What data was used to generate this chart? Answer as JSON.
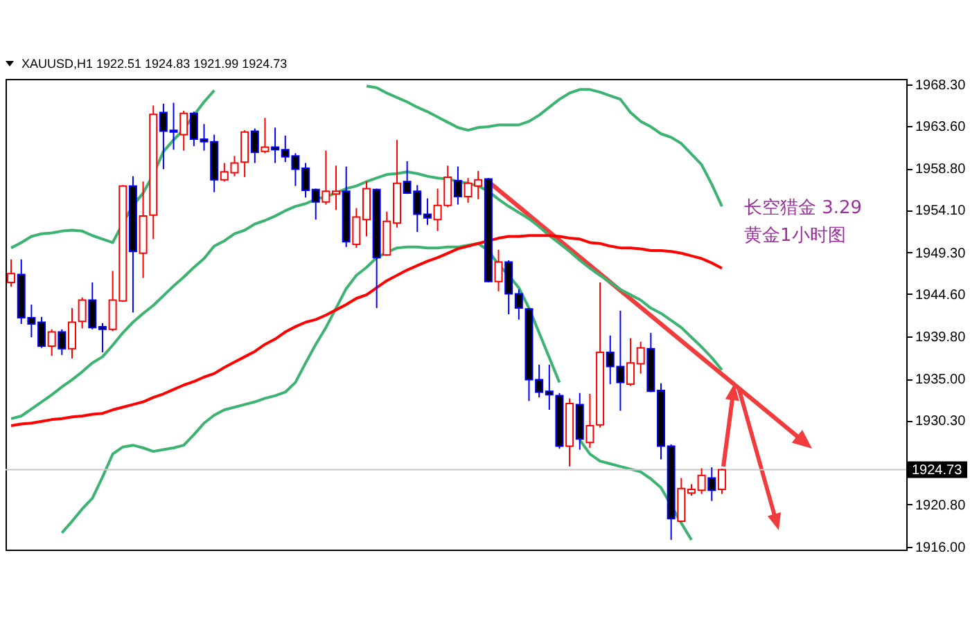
{
  "chart_data": {
    "type": "candlestick",
    "title": "XAUUSD,H1  1922.51 1924.83 1921.99 1924.73",
    "annotations": [
      "长空猎金  3.29",
      "黄金1小时图"
    ],
    "categories": [
      null,
      null,
      null,
      null,
      null,
      null,
      null,
      null,
      null,
      null,
      null,
      null,
      null,
      null,
      null,
      null,
      null,
      null,
      null,
      null,
      null,
      null,
      null,
      null,
      null,
      null,
      null,
      null,
      null,
      null,
      null,
      null,
      null,
      null,
      null,
      null,
      null,
      null,
      null,
      null,
      null,
      null,
      null,
      null,
      null,
      null,
      null,
      null,
      null,
      null,
      null,
      null,
      null,
      null,
      null,
      null,
      null,
      null,
      null,
      null,
      null,
      null,
      null,
      null,
      null,
      null,
      null,
      null,
      null,
      null,
      null
    ],
    "ohlc": [
      [
        1945.9,
        1948.5,
        1945.4,
        1946.9
      ],
      [
        1946.8,
        1948.5,
        1941.2,
        1941.9
      ],
      [
        1941.9,
        1943.4,
        1939.7,
        1941.2
      ],
      [
        1941.4,
        1942.0,
        1938.5,
        1938.7
      ],
      [
        1938.7,
        1940.6,
        1937.6,
        1940.3
      ],
      [
        1940.3,
        1940.6,
        1937.7,
        1938.4
      ],
      [
        1938.4,
        1943.0,
        1937.3,
        1941.4
      ],
      [
        1941.5,
        1944.2,
        1940.7,
        1943.9
      ],
      [
        1943.9,
        1945.9,
        1940.6,
        1940.8
      ],
      [
        1940.9,
        1941.3,
        1938.0,
        1940.6
      ],
      [
        1940.6,
        1947.2,
        1940.4,
        1943.9
      ],
      [
        1943.8,
        1956.9,
        1943.7,
        1956.8
      ],
      [
        1956.8,
        1957.9,
        1942.5,
        1949.4
      ],
      [
        1949.2,
        1957.3,
        1946.4,
        1953.4
      ],
      [
        1953.5,
        1965.9,
        1950.8,
        1964.9
      ],
      [
        1965.1,
        1966.1,
        1958.7,
        1963.0
      ],
      [
        1963.1,
        1966.2,
        1960.9,
        1962.9
      ],
      [
        1962.6,
        1965.3,
        1960.8,
        1965.0
      ],
      [
        1965.0,
        1965.2,
        1961.3,
        1962.1
      ],
      [
        1962.1,
        1963.8,
        1960.8,
        1961.8
      ],
      [
        1961.8,
        1962.6,
        1956.1,
        1957.5
      ],
      [
        1957.5,
        1959.4,
        1957.3,
        1958.4
      ],
      [
        1958.3,
        1960.2,
        1957.9,
        1959.4
      ],
      [
        1959.5,
        1963.1,
        1957.8,
        1962.9
      ],
      [
        1963.0,
        1963.3,
        1959.4,
        1960.6
      ],
      [
        1960.7,
        1964.5,
        1960.5,
        1961.2
      ],
      [
        1961.2,
        1963.4,
        1959.4,
        1960.9
      ],
      [
        1960.9,
        1962.5,
        1959.5,
        1960.1
      ],
      [
        1960.2,
        1960.5,
        1956.8,
        1958.7
      ],
      [
        1958.8,
        1959.4,
        1955.5,
        1956.3
      ],
      [
        1956.4,
        1956.5,
        1953.0,
        1955.0
      ],
      [
        1955.0,
        1960.8,
        1954.7,
        1956.2
      ],
      [
        1955.9,
        1959.1,
        1954.1,
        1956.2
      ],
      [
        1956.2,
        1959.0,
        1949.9,
        1950.5
      ],
      [
        1950.2,
        1954.3,
        1949.8,
        1953.3
      ],
      [
        1953.0,
        1957.3,
        1951.1,
        1956.5
      ],
      [
        1956.4,
        1956.5,
        1943.0,
        1948.7
      ],
      [
        1949.0,
        1953.9,
        1948.9,
        1952.8
      ],
      [
        1952.6,
        1962.0,
        1952.1,
        1957.1
      ],
      [
        1957.3,
        1959.6,
        1955.9,
        1956.0
      ],
      [
        1956.2,
        1956.9,
        1951.6,
        1953.6
      ],
      [
        1953.6,
        1955.4,
        1952.4,
        1953.2
      ],
      [
        1953.0,
        1956.5,
        1951.7,
        1954.6
      ],
      [
        1954.6,
        1959.1,
        1954.4,
        1957.8
      ],
      [
        1957.4,
        1959.0,
        1954.7,
        1955.6
      ],
      [
        1955.6,
        1957.7,
        1954.9,
        1957.1
      ],
      [
        1956.8,
        1958.5,
        1955.3,
        1957.5
      ],
      [
        1957.6,
        1957.7,
        1945.9,
        1946.0
      ],
      [
        1946.0,
        1949.6,
        1944.9,
        1948.2
      ],
      [
        1948.2,
        1948.4,
        1942.3,
        1944.6
      ],
      [
        1944.6,
        1945.1,
        1941.7,
        1943.0
      ],
      [
        1942.9,
        1943.0,
        1932.5,
        1934.9
      ],
      [
        1934.9,
        1936.6,
        1932.9,
        1933.5
      ],
      [
        1933.6,
        1936.6,
        1931.5,
        1933.2
      ],
      [
        1933.1,
        1933.4,
        1927.1,
        1927.4
      ],
      [
        1927.4,
        1932.8,
        1925.1,
        1932.2
      ],
      [
        1932.1,
        1933.4,
        1927.0,
        1928.2
      ],
      [
        1927.8,
        1933.3,
        1927.2,
        1929.7
      ],
      [
        1929.8,
        1945.9,
        1929.5,
        1938.0
      ],
      [
        1938.0,
        1939.9,
        1934.4,
        1936.4
      ],
      [
        1936.4,
        1942.7,
        1931.4,
        1934.6
      ],
      [
        1934.4,
        1939.6,
        1934.2,
        1936.8
      ],
      [
        1936.7,
        1939.2,
        1935.6,
        1938.5
      ],
      [
        1938.4,
        1940.2,
        1933.5,
        1933.6
      ],
      [
        1933.7,
        1934.5,
        1925.9,
        1927.4
      ],
      [
        1927.4,
        1927.6,
        1916.8,
        1919.2
      ],
      [
        1918.9,
        1923.8,
        1918.8,
        1922.6
      ],
      [
        1922.1,
        1923.1,
        1921.8,
        1922.5
      ],
      [
        1922.4,
        1924.9,
        1922.0,
        1924.1
      ],
      [
        1923.8,
        1925.0,
        1921.2,
        1922.4
      ],
      [
        1922.51,
        1924.83,
        1921.99,
        1924.73
      ]
    ],
    "colors": [
      "#ff0000",
      "#0000ff",
      "#0000ff",
      "#0000ff",
      "#ff0000",
      "#0000ff",
      "#ff0000",
      "#ff0000",
      "#0000ff",
      "#0000ff",
      "#ff0000",
      "#ff0000",
      "#0000ff",
      "#ff0000",
      "#ff0000",
      "#0000ff",
      "#0000ff",
      "#ff0000",
      "#0000ff",
      "#0000ff",
      "#0000ff",
      "#ff0000",
      "#ff0000",
      "#ff0000",
      "#0000ff",
      "#ff0000",
      "#0000ff",
      "#0000ff",
      "#0000ff",
      "#0000ff",
      "#0000ff",
      "#ff0000",
      "#ff0000",
      "#0000ff",
      "#ff0000",
      "#ff0000",
      "#0000ff",
      "#ff0000",
      "#ff0000",
      "#0000ff",
      "#0000ff",
      "#0000ff",
      "#ff0000",
      "#ff0000",
      "#0000ff",
      "#ff0000",
      "#ff0000",
      "#0000ff",
      "#ff0000",
      "#0000ff",
      "#0000ff",
      "#0000ff",
      "#0000ff",
      "#0000ff",
      "#0000ff",
      "#ff0000",
      "#0000ff",
      "#ff0000",
      "#ff0000",
      "#0000ff",
      "#0000ff",
      "#ff0000",
      "#ff0000",
      "#0000ff",
      "#0000ff",
      "#0000ff",
      "#ff0000",
      "#ff0000",
      "#ff0000",
      "#0000ff",
      "#ff0000"
    ],
    "series": [
      {
        "type": "line",
        "color": "#3cb371",
        "values": [
          1949.8,
          1950.4,
          1951.1,
          1951.4,
          1951.5,
          1951.7,
          1951.8,
          1951.7,
          1951.2,
          1950.8,
          1950.4,
          1952.6,
          1954.6,
          1956.0,
          1958.1,
          1960.7,
          1962.0,
          1963.2,
          1964.8,
          1966.3,
          1967.6,
          null,
          null,
          null,
          null,
          null,
          null,
          null,
          null,
          null,
          null,
          null,
          null,
          null,
          null,
          1968.1,
          1967.9,
          1967.3,
          1966.8,
          1966.3,
          1965.7,
          1965.2,
          1964.6,
          1964.0,
          1963.4,
          1963.1,
          1963.4,
          1963.5,
          1963.7,
          1963.7,
          1963.7,
          1964.1,
          1964.8,
          1965.7,
          1966.6,
          1967.3,
          1967.7,
          1967.7,
          1967.4,
          1967.0,
          1966.6,
          1965.1,
          1964.1,
          1963.5,
          1962.7,
          1962.3,
          1961.6,
          1960.4,
          1959.2,
          1957.0,
          1954.5
        ]
      },
      {
        "type": "line",
        "color": "#3cb371",
        "values": [
          1930.5,
          1930.8,
          1931.6,
          1932.4,
          1933.2,
          1934.1,
          1934.9,
          1935.8,
          1936.8,
          1937.5,
          1938.8,
          1940.2,
          1941.4,
          1942.4,
          1943.3,
          1944.4,
          1945.5,
          1946.5,
          1947.6,
          1948.6,
          1950.0,
          1950.6,
          1951.4,
          1951.8,
          1952.5,
          1952.9,
          1953.4,
          1954.0,
          1954.5,
          1954.8,
          1955.3,
          1955.6,
          1956.0,
          1956.5,
          1956.8,
          1957.3,
          1957.7,
          1958.1,
          1958.2,
          1958.4,
          1958.2,
          1957.9,
          1957.7,
          1957.6,
          1957.3,
          1957.1,
          1956.8,
          1956.2,
          1955.3,
          1954.5,
          1953.8,
          1953.1,
          1952.2,
          1951.2,
          1950.3,
          1949.4,
          1948.4,
          1947.5,
          1946.7,
          1945.9,
          1945.1,
          1944.5,
          1943.9,
          1943.0,
          1942.4,
          1941.6,
          1940.8,
          1939.7,
          1938.6,
          1937.4,
          1936.0
        ]
      },
      {
        "type": "line",
        "color": "#3cb371",
        "values": [
          null,
          null,
          null,
          null,
          null,
          1917.6,
          1918.9,
          1920.3,
          1921.5,
          1923.9,
          1926.5,
          1927.3,
          1927.5,
          1927.2,
          1926.8,
          1927.0,
          1927.2,
          1927.5,
          1928.7,
          1930.0,
          1930.9,
          1931.5,
          1931.8,
          1932.1,
          1932.4,
          1932.8,
          1933.1,
          1933.5,
          1934.6,
          1936.8,
          1938.9,
          1940.8,
          1943.0,
          1945.2,
          1946.7,
          1947.6,
          1948.7,
          1949.3,
          1949.8,
          1949.9,
          1949.9,
          1949.8,
          1949.8,
          1949.9,
          1949.9,
          1950.1,
          1950.3,
          1949.5,
          1947.9,
          1946.7,
          1945.3,
          1943.0,
          1940.2,
          1937.4,
          1934.6,
          null,
          1928.1,
          1926.5,
          1925.7,
          1925.4,
          1925.1,
          1924.8,
          1924.5,
          1923.7,
          1922.7,
          1920.7,
          1918.7,
          1916.8,
          null,
          null,
          null
        ]
      },
      {
        "type": "line",
        "color": "#ff0000",
        "values": [
          1929.7,
          1929.9,
          1930.0,
          1930.2,
          1930.4,
          1930.5,
          1930.7,
          1930.8,
          1931.0,
          1931.1,
          1931.5,
          1931.8,
          1932.1,
          1932.4,
          1932.9,
          1933.3,
          1933.8,
          1934.3,
          1934.7,
          1935.2,
          1935.6,
          1936.3,
          1936.9,
          1937.5,
          1938.1,
          1938.9,
          1939.5,
          1940.3,
          1940.9,
          1941.4,
          1941.7,
          1942.2,
          1942.8,
          1943.4,
          1944.1,
          1944.5,
          1945.3,
          1946.1,
          1946.7,
          1947.3,
          1947.8,
          1948.3,
          1948.7,
          1949.2,
          1949.7,
          1950.0,
          1950.3,
          1950.6,
          1950.9,
          1951.1,
          1951.1,
          1951.2,
          1951.2,
          1951.2,
          1951.1,
          1950.9,
          1950.8,
          1950.4,
          1950.3,
          1950.0,
          1949.8,
          1949.8,
          1949.7,
          1949.5,
          1949.5,
          1949.4,
          1949.2,
          1948.9,
          1948.6,
          1948.1,
          1947.5
        ]
      }
    ],
    "ref_lines": [
      {
        "axis": "y",
        "value": 1924.73,
        "label": "1924.73",
        "color": "#c8c8c8"
      }
    ],
    "ylim": [
      1915.7,
      1968.9
    ],
    "yticks": [
      {
        "value": 1916,
        "label": "1916.00"
      },
      {
        "value": 1920.8,
        "label": "1920.80"
      },
      {
        "value": 1930.3,
        "label": "1930.30"
      },
      {
        "value": 1935,
        "label": "1935.00"
      },
      {
        "value": 1939.8,
        "label": "1939.80"
      },
      {
        "value": 1944.6,
        "label": "1944.60"
      },
      {
        "value": 1949.3,
        "label": "1949.30"
      },
      {
        "value": 1954.1,
        "label": "1954.10"
      },
      {
        "value": 1958.8,
        "label": "1958.80"
      },
      {
        "value": 1963.6,
        "label": "1963.60"
      },
      {
        "value": 1968.3,
        "label": "1968.30"
      }
    ],
    "tick_labels": "y"
  }
}
